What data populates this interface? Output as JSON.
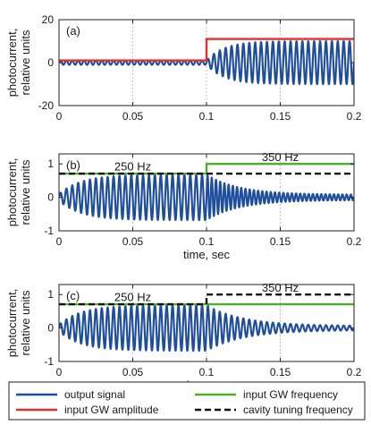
{
  "chart_data": [
    {
      "type": "line",
      "panel_label": "(a)",
      "xlabel": "",
      "ylabel_lines": [
        "photocurrent,",
        "relative units"
      ],
      "xlim": [
        0,
        0.2
      ],
      "ylim": [
        -20,
        20
      ],
      "xticks": [
        "0",
        "0.05",
        "0.1",
        "0.15",
        "0.2"
      ],
      "yticks": [
        "-20",
        "0",
        "20"
      ],
      "grid": "vertical dotted",
      "switch_time": 0.1,
      "series": [
        {
          "name": "output signal",
          "kind": "oscillation",
          "color": "#1f4e9c",
          "segments": [
            {
              "t0": 0.0,
              "t1": 0.1,
              "freq": 250,
              "amp_start": 1,
              "amp_end": 1,
              "tau": 0
            },
            {
              "t0": 0.1,
              "t1": 0.2,
              "freq": 250,
              "amp_start": 1,
              "amp_end": 10,
              "tau": 0.012
            }
          ]
        },
        {
          "name": "input GW amplitude",
          "kind": "step",
          "color": "#e03030",
          "dash": false,
          "x": [
            0,
            0.1,
            0.1,
            0.2
          ],
          "y": [
            1,
            1,
            11,
            11
          ]
        }
      ],
      "annotations": []
    },
    {
      "type": "line",
      "panel_label": "(b)",
      "xlabel": "time, sec",
      "ylabel_lines": [
        "photocurrent,",
        "relative units"
      ],
      "xlim": [
        0,
        0.2
      ],
      "ylim": [
        -1,
        1.3
      ],
      "xticks": [
        "0",
        "0.05",
        "0.1",
        "0.15",
        "0.2"
      ],
      "yticks": [
        "-1",
        "0",
        "1"
      ],
      "grid": "vertical dotted",
      "series": [
        {
          "name": "output signal",
          "kind": "oscillation",
          "color": "#1f4e9c",
          "segments": [
            {
              "t0": 0.0,
              "t1": 0.1,
              "freq": 250,
              "amp_start": 0.1,
              "amp_end": 0.68,
              "tau": 0.015
            },
            {
              "t0": 0.1,
              "t1": 0.2,
              "freq": 350,
              "amp_start": 0.68,
              "amp_end": 0.08,
              "tau": 0.022
            }
          ]
        },
        {
          "name": "input GW frequency",
          "kind": "step",
          "color": "#4caf2a",
          "dash": false,
          "x": [
            0,
            0.1,
            0.1,
            0.2
          ],
          "y": [
            0.71,
            0.71,
            1.0,
            1.0
          ]
        },
        {
          "name": "cavity tuning frequency",
          "kind": "step",
          "color": "#111111",
          "dash": true,
          "x": [
            0,
            0.2
          ],
          "y": [
            0.71,
            0.71
          ]
        }
      ],
      "annotations": [
        {
          "text": "250 Hz",
          "x": 0.05,
          "y": 0.8
        },
        {
          "text": "350 Hz",
          "x": 0.15,
          "y": 1.08
        }
      ]
    },
    {
      "type": "line",
      "panel_label": "(c)",
      "xlabel": "time, sec",
      "ylabel_lines": [
        "photocurrent,",
        "relative units"
      ],
      "xlim": [
        0,
        0.2
      ],
      "ylim": [
        -1,
        1.3
      ],
      "xticks": [
        "0",
        "0.05",
        "0.1",
        "0.15",
        "0.2"
      ],
      "yticks": [
        "-1",
        "0",
        "1"
      ],
      "grid": "vertical dotted",
      "series": [
        {
          "name": "output signal",
          "kind": "oscillation",
          "color": "#1f4e9c",
          "segments": [
            {
              "t0": 0.0,
              "t1": 0.1,
              "freq": 250,
              "amp_start": 0.1,
              "amp_end": 0.68,
              "tau": 0.015
            },
            {
              "t0": 0.1,
              "t1": 0.2,
              "freq": 250,
              "amp_start": 0.68,
              "amp_end": 0.06,
              "tau": 0.025
            }
          ]
        },
        {
          "name": "input GW frequency",
          "kind": "step",
          "color": "#4caf2a",
          "dash": false,
          "x": [
            0,
            0.2
          ],
          "y": [
            0.71,
            0.71
          ]
        },
        {
          "name": "cavity tuning frequency",
          "kind": "step",
          "color": "#111111",
          "dash": true,
          "x": [
            0,
            0.1,
            0.1,
            0.2
          ],
          "y": [
            0.71,
            0.71,
            1.0,
            1.0
          ]
        }
      ],
      "annotations": [
        {
          "text": "250 Hz",
          "x": 0.05,
          "y": 0.8
        },
        {
          "text": "350 Hz",
          "x": 0.15,
          "y": 1.08
        }
      ]
    }
  ],
  "legend": {
    "placement": "bottom",
    "items": [
      {
        "label": "output signal",
        "color": "#1f4e9c",
        "dash": false
      },
      {
        "label": "input GW frequency",
        "color": "#4caf2a",
        "dash": false
      },
      {
        "label": "input GW amplitude",
        "color": "#e03030",
        "dash": false
      },
      {
        "label": "cavity tuning frequency",
        "color": "#111111",
        "dash": true
      }
    ]
  }
}
